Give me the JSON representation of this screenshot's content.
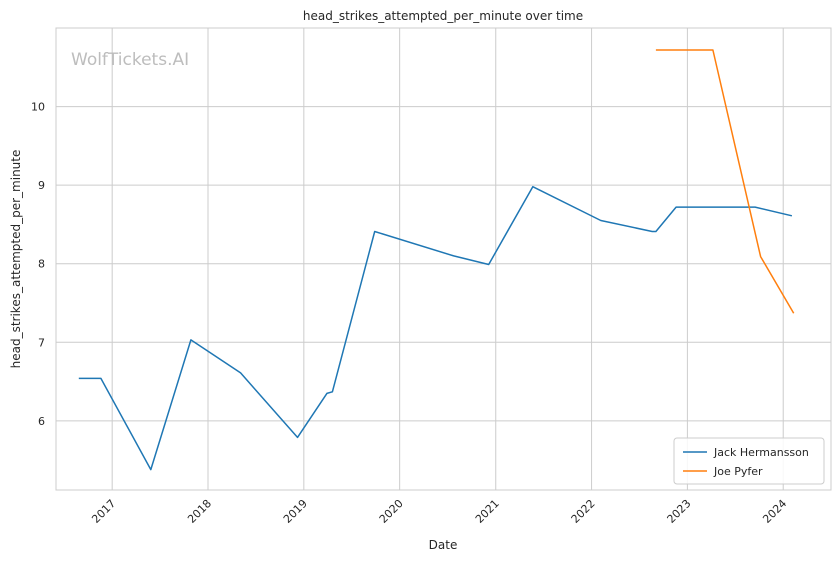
{
  "watermark": "WolfTickets.AI",
  "chart_data": {
    "type": "line",
    "title": "head_strikes_attempted_per_minute over time",
    "xlabel": "Date",
    "ylabel": "head_strikes_attempted_per_minute",
    "x_ticks": [
      "2017",
      "2018",
      "2019",
      "2020",
      "2021",
      "2022",
      "2023",
      "2024"
    ],
    "y_ticks": [
      6,
      7,
      8,
      9,
      10
    ],
    "xlim": [
      "2016-06-01",
      "2024-07-01"
    ],
    "ylim": [
      5.12,
      11.0
    ],
    "grid": true,
    "legend_position": "bottom-right",
    "series": [
      {
        "name": "Jack Hermansson",
        "color": "#1f77b4",
        "points": [
          [
            "2016-08-27",
            6.54
          ],
          [
            "2016-11-19",
            6.54
          ],
          [
            "2017-05-28",
            5.38
          ],
          [
            "2017-10-28",
            7.03
          ],
          [
            "2018-05-05",
            6.61
          ],
          [
            "2018-12-08",
            5.79
          ],
          [
            "2019-03-30",
            6.35
          ],
          [
            "2019-04-20",
            6.37
          ],
          [
            "2019-09-28",
            8.41
          ],
          [
            "2020-07-25",
            8.1
          ],
          [
            "2020-12-05",
            7.99
          ],
          [
            "2021-05-22",
            8.98
          ],
          [
            "2022-02-05",
            8.55
          ],
          [
            "2022-08-20",
            8.41
          ],
          [
            "2022-09-03",
            8.41
          ],
          [
            "2022-11-19",
            8.72
          ],
          [
            "2023-09-16",
            8.72
          ],
          [
            "2024-02-03",
            8.61
          ]
        ]
      },
      {
        "name": "Joe Pyfer",
        "color": "#ff7f0e",
        "points": [
          [
            "2022-09-03",
            10.72
          ],
          [
            "2023-04-08",
            10.72
          ],
          [
            "2023-10-07",
            8.09
          ],
          [
            "2024-02-10",
            7.37
          ]
        ]
      }
    ]
  }
}
